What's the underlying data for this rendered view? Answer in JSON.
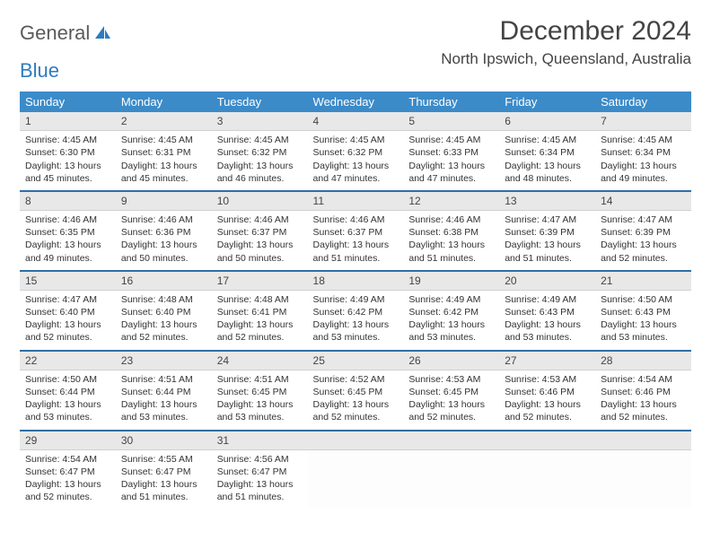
{
  "brand": {
    "part1": "General",
    "part2": "Blue"
  },
  "title": "December 2024",
  "location": "North Ipswich, Queensland, Australia",
  "colors": {
    "header_bg": "#3b8bc9",
    "header_text": "#ffffff",
    "row_divider": "#2f6fa3",
    "daynum_bg": "#e8e8e8",
    "text": "#333333",
    "brand_gray": "#5a5a5a",
    "brand_blue": "#2f7bbf"
  },
  "day_headers": [
    "Sunday",
    "Monday",
    "Tuesday",
    "Wednesday",
    "Thursday",
    "Friday",
    "Saturday"
  ],
  "weeks": [
    [
      {
        "n": "1",
        "sr": "Sunrise: 4:45 AM",
        "ss": "Sunset: 6:30 PM",
        "dl": "Daylight: 13 hours and 45 minutes."
      },
      {
        "n": "2",
        "sr": "Sunrise: 4:45 AM",
        "ss": "Sunset: 6:31 PM",
        "dl": "Daylight: 13 hours and 45 minutes."
      },
      {
        "n": "3",
        "sr": "Sunrise: 4:45 AM",
        "ss": "Sunset: 6:32 PM",
        "dl": "Daylight: 13 hours and 46 minutes."
      },
      {
        "n": "4",
        "sr": "Sunrise: 4:45 AM",
        "ss": "Sunset: 6:32 PM",
        "dl": "Daylight: 13 hours and 47 minutes."
      },
      {
        "n": "5",
        "sr": "Sunrise: 4:45 AM",
        "ss": "Sunset: 6:33 PM",
        "dl": "Daylight: 13 hours and 47 minutes."
      },
      {
        "n": "6",
        "sr": "Sunrise: 4:45 AM",
        "ss": "Sunset: 6:34 PM",
        "dl": "Daylight: 13 hours and 48 minutes."
      },
      {
        "n": "7",
        "sr": "Sunrise: 4:45 AM",
        "ss": "Sunset: 6:34 PM",
        "dl": "Daylight: 13 hours and 49 minutes."
      }
    ],
    [
      {
        "n": "8",
        "sr": "Sunrise: 4:46 AM",
        "ss": "Sunset: 6:35 PM",
        "dl": "Daylight: 13 hours and 49 minutes."
      },
      {
        "n": "9",
        "sr": "Sunrise: 4:46 AM",
        "ss": "Sunset: 6:36 PM",
        "dl": "Daylight: 13 hours and 50 minutes."
      },
      {
        "n": "10",
        "sr": "Sunrise: 4:46 AM",
        "ss": "Sunset: 6:37 PM",
        "dl": "Daylight: 13 hours and 50 minutes."
      },
      {
        "n": "11",
        "sr": "Sunrise: 4:46 AM",
        "ss": "Sunset: 6:37 PM",
        "dl": "Daylight: 13 hours and 51 minutes."
      },
      {
        "n": "12",
        "sr": "Sunrise: 4:46 AM",
        "ss": "Sunset: 6:38 PM",
        "dl": "Daylight: 13 hours and 51 minutes."
      },
      {
        "n": "13",
        "sr": "Sunrise: 4:47 AM",
        "ss": "Sunset: 6:39 PM",
        "dl": "Daylight: 13 hours and 51 minutes."
      },
      {
        "n": "14",
        "sr": "Sunrise: 4:47 AM",
        "ss": "Sunset: 6:39 PM",
        "dl": "Daylight: 13 hours and 52 minutes."
      }
    ],
    [
      {
        "n": "15",
        "sr": "Sunrise: 4:47 AM",
        "ss": "Sunset: 6:40 PM",
        "dl": "Daylight: 13 hours and 52 minutes."
      },
      {
        "n": "16",
        "sr": "Sunrise: 4:48 AM",
        "ss": "Sunset: 6:40 PM",
        "dl": "Daylight: 13 hours and 52 minutes."
      },
      {
        "n": "17",
        "sr": "Sunrise: 4:48 AM",
        "ss": "Sunset: 6:41 PM",
        "dl": "Daylight: 13 hours and 52 minutes."
      },
      {
        "n": "18",
        "sr": "Sunrise: 4:49 AM",
        "ss": "Sunset: 6:42 PM",
        "dl": "Daylight: 13 hours and 53 minutes."
      },
      {
        "n": "19",
        "sr": "Sunrise: 4:49 AM",
        "ss": "Sunset: 6:42 PM",
        "dl": "Daylight: 13 hours and 53 minutes."
      },
      {
        "n": "20",
        "sr": "Sunrise: 4:49 AM",
        "ss": "Sunset: 6:43 PM",
        "dl": "Daylight: 13 hours and 53 minutes."
      },
      {
        "n": "21",
        "sr": "Sunrise: 4:50 AM",
        "ss": "Sunset: 6:43 PM",
        "dl": "Daylight: 13 hours and 53 minutes."
      }
    ],
    [
      {
        "n": "22",
        "sr": "Sunrise: 4:50 AM",
        "ss": "Sunset: 6:44 PM",
        "dl": "Daylight: 13 hours and 53 minutes."
      },
      {
        "n": "23",
        "sr": "Sunrise: 4:51 AM",
        "ss": "Sunset: 6:44 PM",
        "dl": "Daylight: 13 hours and 53 minutes."
      },
      {
        "n": "24",
        "sr": "Sunrise: 4:51 AM",
        "ss": "Sunset: 6:45 PM",
        "dl": "Daylight: 13 hours and 53 minutes."
      },
      {
        "n": "25",
        "sr": "Sunrise: 4:52 AM",
        "ss": "Sunset: 6:45 PM",
        "dl": "Daylight: 13 hours and 52 minutes."
      },
      {
        "n": "26",
        "sr": "Sunrise: 4:53 AM",
        "ss": "Sunset: 6:45 PM",
        "dl": "Daylight: 13 hours and 52 minutes."
      },
      {
        "n": "27",
        "sr": "Sunrise: 4:53 AM",
        "ss": "Sunset: 6:46 PM",
        "dl": "Daylight: 13 hours and 52 minutes."
      },
      {
        "n": "28",
        "sr": "Sunrise: 4:54 AM",
        "ss": "Sunset: 6:46 PM",
        "dl": "Daylight: 13 hours and 52 minutes."
      }
    ],
    [
      {
        "n": "29",
        "sr": "Sunrise: 4:54 AM",
        "ss": "Sunset: 6:47 PM",
        "dl": "Daylight: 13 hours and 52 minutes."
      },
      {
        "n": "30",
        "sr": "Sunrise: 4:55 AM",
        "ss": "Sunset: 6:47 PM",
        "dl": "Daylight: 13 hours and 51 minutes."
      },
      {
        "n": "31",
        "sr": "Sunrise: 4:56 AM",
        "ss": "Sunset: 6:47 PM",
        "dl": "Daylight: 13 hours and 51 minutes."
      },
      null,
      null,
      null,
      null
    ]
  ]
}
